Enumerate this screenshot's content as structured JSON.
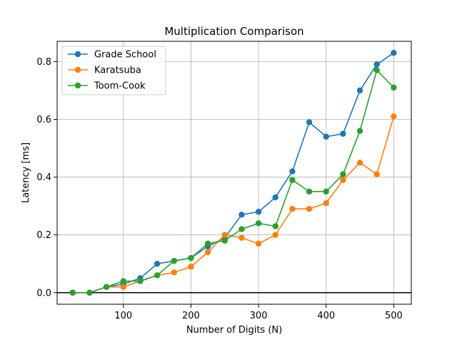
{
  "chart_data": {
    "type": "line",
    "title": "Multiplication Comparison",
    "xlabel": "Number of Digits (N)",
    "ylabel": "Latency [ms]",
    "xlim": [
      2,
      526
    ],
    "ylim": [
      -0.04,
      0.87
    ],
    "xticks": [
      100,
      200,
      300,
      400,
      500
    ],
    "yticks": [
      0.0,
      0.2,
      0.4,
      0.6,
      0.8
    ],
    "xtick_labels": [
      "100",
      "200",
      "300",
      "400",
      "500"
    ],
    "ytick_labels": [
      "0.0",
      "0.2",
      "0.4",
      "0.6",
      "0.8"
    ],
    "grid": true,
    "zero_line": true,
    "legend_position": "top-left",
    "x": [
      25,
      50,
      75,
      100,
      125,
      150,
      175,
      200,
      225,
      250,
      275,
      300,
      325,
      350,
      375,
      400,
      425,
      450,
      475,
      500
    ],
    "series": [
      {
        "name": "Grade School",
        "color": "#1f77b4",
        "values": [
          0.0,
          0.0,
          0.02,
          0.03,
          0.05,
          0.1,
          0.11,
          0.12,
          0.16,
          0.19,
          0.27,
          0.28,
          0.33,
          0.42,
          0.59,
          0.54,
          0.55,
          0.7,
          0.79,
          0.83
        ]
      },
      {
        "name": "Karatsuba",
        "color": "#ff7f0e",
        "values": [
          0.0,
          0.0,
          0.02,
          0.02,
          0.04,
          0.06,
          0.07,
          0.09,
          0.14,
          0.2,
          0.19,
          0.17,
          0.2,
          0.29,
          0.29,
          0.31,
          0.39,
          0.45,
          0.41,
          0.61
        ]
      },
      {
        "name": "Toom-Cook",
        "color": "#2ca02c",
        "values": [
          0.0,
          0.0,
          0.02,
          0.04,
          0.04,
          0.06,
          0.11,
          0.12,
          0.17,
          0.18,
          0.22,
          0.24,
          0.23,
          0.39,
          0.35,
          0.35,
          0.41,
          0.56,
          0.77,
          0.71
        ]
      }
    ]
  }
}
